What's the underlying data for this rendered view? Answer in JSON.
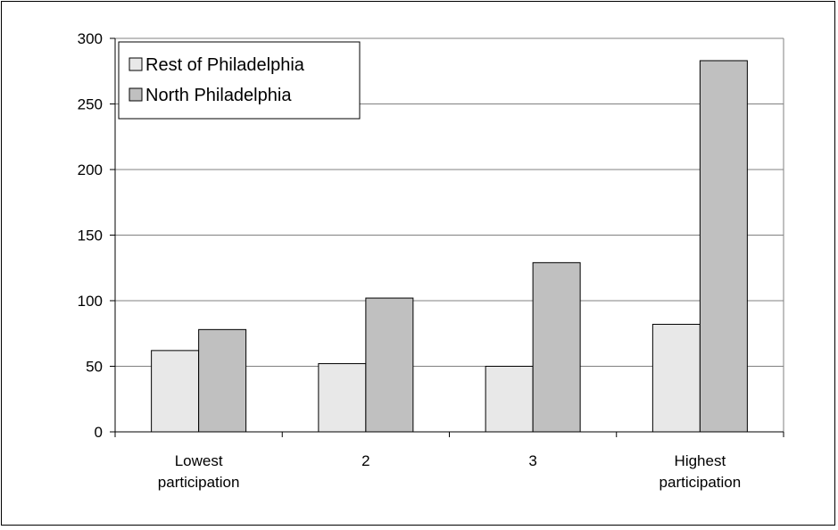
{
  "chart_data": {
    "type": "bar",
    "categories": [
      [
        "Lowest",
        "participation"
      ],
      [
        "2"
      ],
      [
        "3"
      ],
      [
        "Highest",
        "participation"
      ]
    ],
    "series": [
      {
        "name": "Rest of Philadelphia",
        "values": [
          62,
          52,
          50,
          82
        ],
        "color": "#e8e8e8"
      },
      {
        "name": "North Philadelphia",
        "values": [
          78,
          102,
          129,
          283
        ],
        "color": "#c0c0c0"
      }
    ],
    "ylim": [
      0,
      300
    ],
    "yticks": [
      "0",
      "50",
      "100",
      "150",
      "200",
      "250",
      "300"
    ],
    "grid": true,
    "legend_position": "top-left"
  }
}
